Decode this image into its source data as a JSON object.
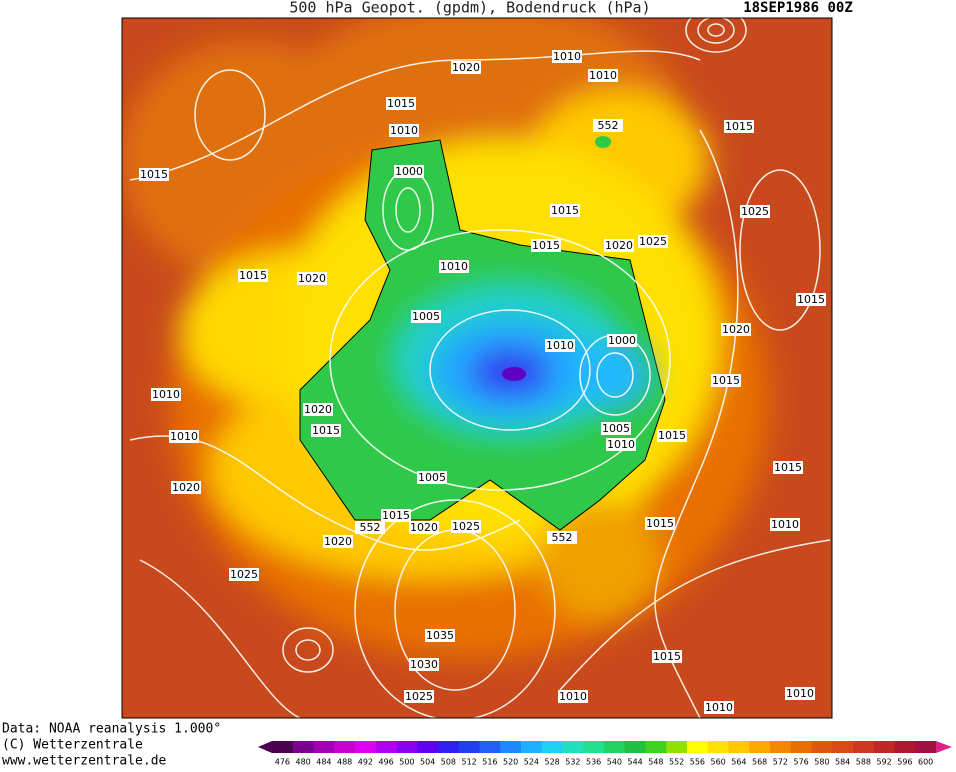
{
  "header": {
    "title": "500 hPa Geopot. (gpdm), Bodendruck (hPa)",
    "date": "18SEP1986 00Z"
  },
  "footer": {
    "line1": "Data: NOAA reanalysis 1.000°",
    "line2": "(C) Wetterzentrale",
    "line3": "www.wetterzentrale.de"
  },
  "colorbar": {
    "labels": [
      476,
      480,
      484,
      488,
      492,
      496,
      500,
      504,
      508,
      512,
      516,
      520,
      524,
      528,
      532,
      536,
      540,
      544,
      548,
      552,
      556,
      560,
      564,
      568,
      572,
      576,
      580,
      584,
      588,
      592,
      596,
      600
    ],
    "colors": [
      "#4b0050",
      "#7a0090",
      "#a000b0",
      "#c800d0",
      "#e000f0",
      "#b000f0",
      "#8a00f0",
      "#6000f0",
      "#3020f0",
      "#2040f0",
      "#2060f8",
      "#2088ff",
      "#20b0ff",
      "#20d0f0",
      "#20e0c0",
      "#20e090",
      "#20d060",
      "#20c040",
      "#40d020",
      "#90e000",
      "#ffff00",
      "#ffe000",
      "#ffc800",
      "#ffa800",
      "#f08800",
      "#e87000",
      "#e05810",
      "#d84818",
      "#d03820",
      "#c02828",
      "#b01830",
      "#a01040"
    ]
  },
  "contour_labels": [
    "1020",
    "1010",
    "1010",
    "1015",
    "1010",
    "552",
    "1015",
    "1015",
    "1000",
    "1015",
    "1025",
    "1015",
    "1020",
    "1025",
    "1010",
    "1015",
    "1020",
    "1015",
    "1005",
    "1020",
    "1010",
    "1000",
    "1015",
    "1010",
    "1020",
    "1015",
    "1010",
    "1005",
    "1010",
    "1015",
    "1015",
    "1005",
    "1020",
    "1015",
    "1020",
    "1025",
    "1015",
    "1010",
    "552",
    "552",
    "1020",
    "1025",
    "1035",
    "1015",
    "1030",
    "1025",
    "1010",
    "1010",
    "1010"
  ]
}
